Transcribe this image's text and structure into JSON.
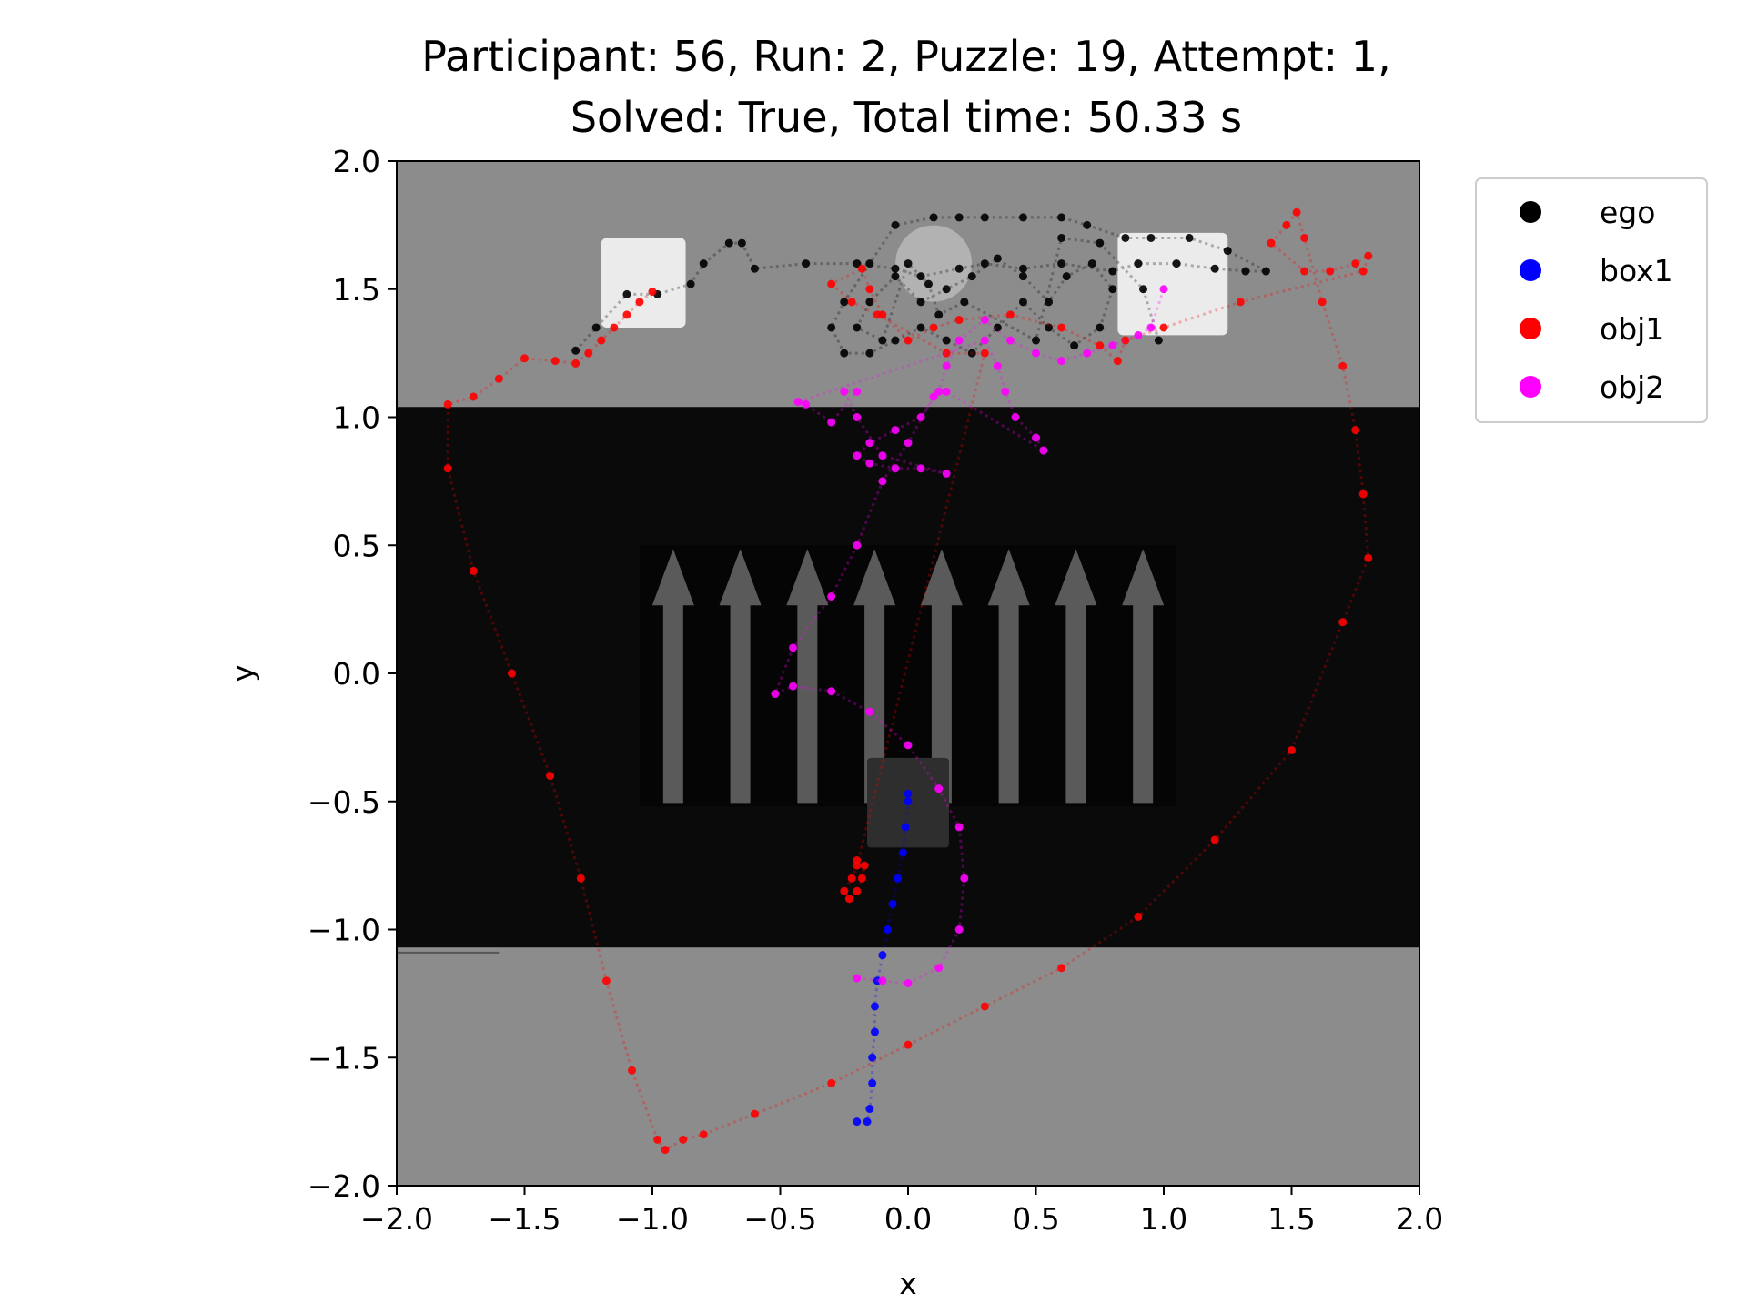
{
  "chart_data": {
    "type": "scatter",
    "title_lines": [
      "Participant: 56, Run: 2, Puzzle: 19, Attempt: 1,",
      "Solved: True, Total time: 50.33 s"
    ],
    "xlabel": "x",
    "ylabel": "y",
    "xlim": [
      -2.0,
      2.0
    ],
    "ylim": [
      -2.0,
      2.0
    ],
    "x_ticks": [
      "−2.0",
      "−1.5",
      "−1.0",
      "−0.5",
      "0.0",
      "0.5",
      "1.0",
      "1.5",
      "2.0"
    ],
    "y_ticks": [
      "2.0",
      "1.5",
      "1.0",
      "0.5",
      "0.0",
      "−0.5",
      "−1.0",
      "−1.5",
      "−2.0"
    ],
    "grid": false,
    "legend_placement": "outside-top-right",
    "background": {
      "floor_color": "#8c8c8c",
      "pit_color": "#0a0a0a",
      "pit_y_range": [
        -1.07,
        1.04
      ],
      "conveyor_x_range": [
        -1.05,
        1.05
      ],
      "conveyor_y_range": [
        -0.52,
        0.5
      ],
      "arrow_count": 8,
      "arrow_color": "#5a5a5a",
      "box_color": "#ebebeb",
      "dark_box_color": "#2e2e2e"
    },
    "series": [
      {
        "name": "ego",
        "color": "#000000",
        "points": [
          [
            -1.3,
            1.26
          ],
          [
            -1.22,
            1.35
          ],
          [
            -1.1,
            1.48
          ],
          [
            -0.98,
            1.48
          ],
          [
            -0.85,
            1.52
          ],
          [
            -0.8,
            1.6
          ],
          [
            -0.7,
            1.68
          ],
          [
            -0.65,
            1.68
          ],
          [
            -0.6,
            1.58
          ],
          [
            -0.4,
            1.6
          ],
          [
            -0.2,
            1.6
          ],
          [
            -0.05,
            1.58
          ],
          [
            0.05,
            1.55
          ],
          [
            0.2,
            1.58
          ],
          [
            0.3,
            1.6
          ],
          [
            0.45,
            1.58
          ],
          [
            0.6,
            1.6
          ],
          [
            0.8,
            1.57
          ],
          [
            0.9,
            1.6
          ],
          [
            1.05,
            1.6
          ],
          [
            1.2,
            1.58
          ],
          [
            1.32,
            1.57
          ],
          [
            1.4,
            1.57
          ],
          [
            1.25,
            1.65
          ],
          [
            1.1,
            1.7
          ],
          [
            0.95,
            1.7
          ],
          [
            0.85,
            1.7
          ],
          [
            0.7,
            1.75
          ],
          [
            0.6,
            1.78
          ],
          [
            0.45,
            1.78
          ],
          [
            0.3,
            1.78
          ],
          [
            0.2,
            1.78
          ],
          [
            0.1,
            1.78
          ],
          [
            -0.05,
            1.75
          ],
          [
            -0.15,
            1.6
          ],
          [
            -0.25,
            1.45
          ],
          [
            -0.3,
            1.35
          ],
          [
            -0.25,
            1.25
          ],
          [
            -0.15,
            1.25
          ],
          [
            -0.05,
            1.3
          ],
          [
            0.05,
            1.35
          ],
          [
            0.15,
            1.3
          ],
          [
            0.25,
            1.25
          ],
          [
            0.35,
            1.35
          ],
          [
            0.45,
            1.45
          ],
          [
            0.55,
            1.35
          ],
          [
            0.65,
            1.28
          ],
          [
            0.75,
            1.35
          ],
          [
            0.8,
            1.5
          ],
          [
            0.72,
            1.6
          ],
          [
            0.62,
            1.55
          ],
          [
            0.55,
            1.45
          ],
          [
            0.45,
            1.55
          ],
          [
            0.35,
            1.62
          ],
          [
            0.25,
            1.55
          ],
          [
            0.15,
            1.5
          ],
          [
            0.05,
            1.45
          ],
          [
            -0.05,
            1.55
          ],
          [
            -0.15,
            1.45
          ],
          [
            -0.2,
            1.35
          ],
          [
            -0.1,
            1.3
          ],
          [
            0.0,
            1.6
          ],
          [
            0.08,
            1.52
          ],
          [
            0.12,
            1.4
          ],
          [
            0.22,
            1.45
          ],
          [
            0.5,
            1.3
          ],
          [
            0.6,
            1.7
          ],
          [
            0.75,
            1.68
          ],
          [
            0.92,
            1.5
          ],
          [
            0.98,
            1.3
          ]
        ]
      },
      {
        "name": "box1",
        "color": "#0000ff",
        "points": [
          [
            0.0,
            -0.47
          ],
          [
            0.0,
            -0.5
          ],
          [
            -0.01,
            -0.6
          ],
          [
            -0.02,
            -0.7
          ],
          [
            -0.04,
            -0.8
          ],
          [
            -0.06,
            -0.9
          ],
          [
            -0.08,
            -1.0
          ],
          [
            -0.1,
            -1.1
          ],
          [
            -0.12,
            -1.2
          ],
          [
            -0.13,
            -1.3
          ],
          [
            -0.13,
            -1.4
          ],
          [
            -0.14,
            -1.5
          ],
          [
            -0.14,
            -1.6
          ],
          [
            -0.15,
            -1.7
          ],
          [
            -0.16,
            -1.75
          ],
          [
            -0.2,
            -1.75
          ]
        ]
      },
      {
        "name": "obj1",
        "color": "#ff0000",
        "points": [
          [
            -1.0,
            1.49
          ],
          [
            -1.05,
            1.45
          ],
          [
            -1.1,
            1.4
          ],
          [
            -1.15,
            1.35
          ],
          [
            -1.2,
            1.3
          ],
          [
            -1.25,
            1.25
          ],
          [
            -1.3,
            1.21
          ],
          [
            -1.38,
            1.22
          ],
          [
            -1.5,
            1.23
          ],
          [
            -1.6,
            1.15
          ],
          [
            -1.7,
            1.08
          ],
          [
            -1.8,
            1.05
          ],
          [
            -1.8,
            0.8
          ],
          [
            -1.7,
            0.4
          ],
          [
            -1.55,
            0.0
          ],
          [
            -1.4,
            -0.4
          ],
          [
            -1.28,
            -0.8
          ],
          [
            -1.18,
            -1.2
          ],
          [
            -1.08,
            -1.55
          ],
          [
            -0.98,
            -1.82
          ],
          [
            -0.95,
            -1.86
          ],
          [
            -0.88,
            -1.82
          ],
          [
            -0.8,
            -1.8
          ],
          [
            -0.6,
            -1.72
          ],
          [
            -0.3,
            -1.6
          ],
          [
            0.0,
            -1.45
          ],
          [
            0.3,
            -1.3
          ],
          [
            0.6,
            -1.15
          ],
          [
            0.9,
            -0.95
          ],
          [
            1.2,
            -0.65
          ],
          [
            1.5,
            -0.3
          ],
          [
            1.7,
            0.2
          ],
          [
            1.8,
            0.45
          ],
          [
            1.78,
            0.7
          ],
          [
            1.75,
            0.95
          ],
          [
            1.7,
            1.2
          ],
          [
            1.62,
            1.45
          ],
          [
            1.55,
            1.7
          ],
          [
            1.52,
            1.8
          ],
          [
            1.48,
            1.75
          ],
          [
            1.42,
            1.68
          ],
          [
            1.55,
            1.57
          ],
          [
            1.65,
            1.57
          ],
          [
            1.75,
            1.6
          ],
          [
            1.8,
            1.63
          ],
          [
            1.78,
            1.57
          ],
          [
            1.3,
            1.45
          ],
          [
            1.0,
            1.35
          ],
          [
            0.85,
            1.3
          ],
          [
            0.82,
            1.22
          ],
          [
            0.75,
            1.28
          ],
          [
            0.6,
            1.35
          ],
          [
            0.4,
            1.4
          ],
          [
            0.2,
            1.38
          ],
          [
            0.1,
            1.35
          ],
          [
            0.0,
            1.3
          ],
          [
            -0.1,
            1.4
          ],
          [
            -0.15,
            1.5
          ],
          [
            -0.18,
            1.58
          ],
          [
            -0.3,
            1.52
          ],
          [
            -0.22,
            1.45
          ],
          [
            -0.12,
            1.4
          ],
          [
            0.15,
            1.25
          ],
          [
            0.3,
            1.25
          ],
          [
            -0.2,
            -0.75
          ],
          [
            -0.22,
            -0.8
          ],
          [
            -0.25,
            -0.85
          ],
          [
            -0.23,
            -0.88
          ],
          [
            -0.2,
            -0.85
          ],
          [
            -0.18,
            -0.8
          ],
          [
            -0.17,
            -0.75
          ],
          [
            -0.2,
            -0.73
          ]
        ]
      },
      {
        "name": "obj2",
        "color": "#ff00ff",
        "points": [
          [
            1.0,
            1.5
          ],
          [
            0.95,
            1.35
          ],
          [
            0.9,
            1.32
          ],
          [
            0.8,
            1.28
          ],
          [
            0.7,
            1.25
          ],
          [
            0.6,
            1.22
          ],
          [
            0.5,
            1.25
          ],
          [
            0.4,
            1.3
          ],
          [
            0.3,
            1.38
          ],
          [
            0.2,
            1.3
          ],
          [
            0.15,
            1.2
          ],
          [
            0.12,
            1.1
          ],
          [
            0.05,
            1.0
          ],
          [
            -0.05,
            0.95
          ],
          [
            -0.15,
            0.9
          ],
          [
            -0.2,
            0.85
          ],
          [
            -0.15,
            0.82
          ],
          [
            -0.05,
            0.8
          ],
          [
            0.05,
            0.8
          ],
          [
            0.15,
            0.78
          ],
          [
            -0.1,
            0.85
          ],
          [
            -0.2,
            1.0
          ],
          [
            -0.25,
            1.1
          ],
          [
            -0.2,
            1.1
          ],
          [
            -0.3,
            0.98
          ],
          [
            -0.4,
            1.05
          ],
          [
            -0.43,
            1.06
          ],
          [
            0.3,
            1.3
          ],
          [
            0.35,
            1.2
          ],
          [
            0.38,
            1.1
          ],
          [
            0.42,
            1.0
          ],
          [
            0.5,
            0.92
          ],
          [
            0.53,
            0.87
          ],
          [
            0.15,
            1.1
          ],
          [
            0.1,
            1.08
          ],
          [
            0.0,
            0.9
          ],
          [
            -0.1,
            0.75
          ],
          [
            -0.2,
            0.5
          ],
          [
            -0.3,
            0.3
          ],
          [
            -0.45,
            0.1
          ],
          [
            -0.52,
            -0.08
          ],
          [
            -0.45,
            -0.05
          ],
          [
            -0.3,
            -0.07
          ],
          [
            -0.15,
            -0.15
          ],
          [
            0.0,
            -0.28
          ],
          [
            0.12,
            -0.45
          ],
          [
            0.2,
            -0.6
          ],
          [
            0.22,
            -0.8
          ],
          [
            0.2,
            -1.0
          ],
          [
            0.12,
            -1.15
          ],
          [
            0.0,
            -1.21
          ],
          [
            -0.1,
            -1.2
          ],
          [
            -0.2,
            -1.19
          ]
        ]
      }
    ]
  }
}
